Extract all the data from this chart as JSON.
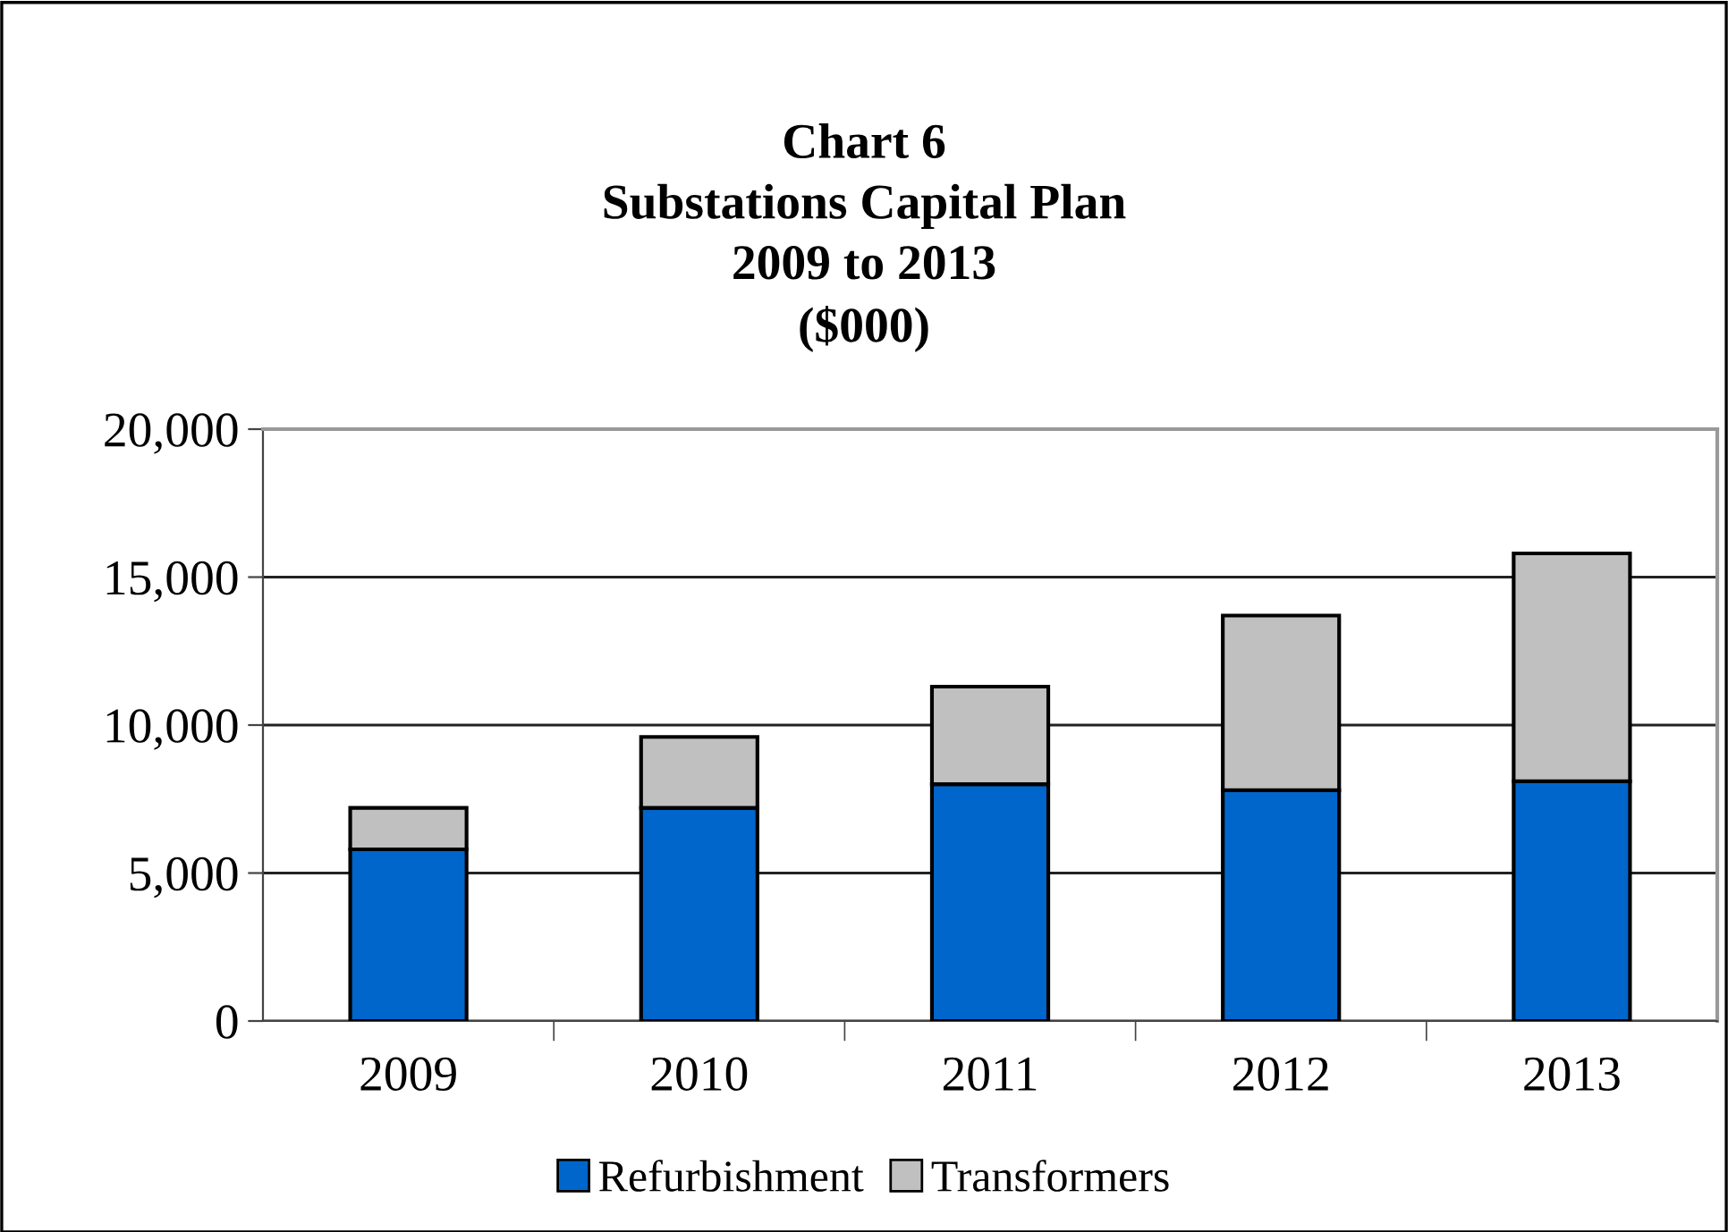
{
  "chart_data": {
    "type": "bar",
    "title": "Chart 6\nSubstations Capital Plan\n2009 to 2013\n($000)",
    "categories": [
      "2009",
      "2010",
      "2011",
      "2012",
      "2013"
    ],
    "series": [
      {
        "name": "Refurbishment",
        "color": "#0066cc",
        "values": [
          5800,
          7200,
          8000,
          7800,
          8100
        ]
      },
      {
        "name": "Transformers",
        "color": "#c0c0c0",
        "values": [
          1400,
          2400,
          3300,
          5900,
          7700
        ]
      }
    ],
    "stacked": true,
    "ylim": [
      0,
      20000
    ],
    "yticks": [
      {
        "value": 0,
        "label": "0"
      },
      {
        "value": 5000,
        "label": "5,000"
      },
      {
        "value": 10000,
        "label": "10,000"
      },
      {
        "value": 15000,
        "label": "15,000"
      },
      {
        "value": 20000,
        "label": "20,000"
      }
    ],
    "grid": "y",
    "legend": "bottom"
  }
}
